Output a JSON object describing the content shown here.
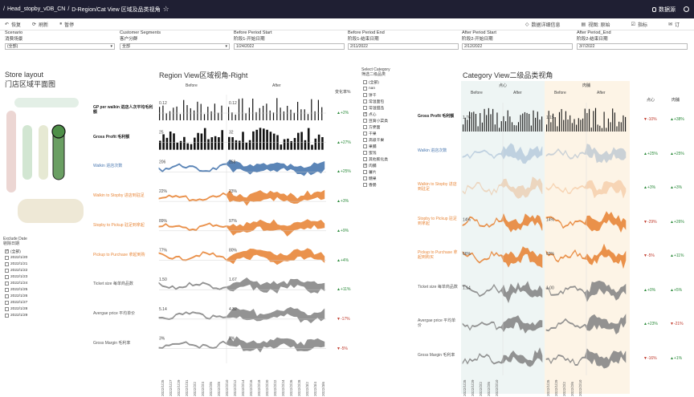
{
  "titlebar": {
    "sep": "/",
    "workbook": "Head_stopby_vDB_CN",
    "sep2": "/",
    "view": "D-Region/Cat View 区域及品类视角",
    "star": "☆",
    "datasource": "数据源"
  },
  "toolbar": {
    "undo": "恢复",
    "refresh": "刷新",
    "pause": "暂停",
    "data_details": "数据详细信息",
    "view_orig": "视图: 原始",
    "metrics": "指标",
    "subscribe": "订"
  },
  "filters": [
    {
      "en": "Scenario",
      "cn": "消费场景",
      "value": "(全部)"
    },
    {
      "en": "Customer Segments",
      "cn": "客户分群",
      "value": "全部"
    },
    {
      "en": "Before Period Start",
      "cn": "阶段1-开始日期",
      "value": "1/24/2022"
    },
    {
      "en": "Before Period End",
      "cn": "阶段1-结束日期",
      "value": "2/11/2022"
    },
    {
      "en": "After Period Start",
      "cn": "阶段2-开始日期",
      "value": "2/12/2022"
    },
    {
      "en": "After Period_End",
      "cn": "阶段2-结束日期",
      "value": "3/7/2022"
    }
  ],
  "store": {
    "title_en": "Store layout",
    "title_cn": "门店区域平面图"
  },
  "exclude": {
    "label_en": "Exclude Date",
    "label_cn": "剔除日期",
    "items": [
      "(全部)",
      "2022/1/20",
      "2022/1/21",
      "2022/1/22",
      "2022/1/23",
      "2022/1/24",
      "2022/1/25",
      "2022/1/26",
      "2022/1/27",
      "2022/1/28",
      "2022/1/29"
    ]
  },
  "region": {
    "title": "Region View区域视角-Right",
    "before": "Before",
    "after": "After",
    "change_header": "变化率%",
    "rows": [
      {
        "label": "GP per walkin 进店人次平均毛利额",
        "vb": "0.12",
        "va": "0.12",
        "chg": "▲+2%"
      },
      {
        "label": "Gross Profit 毛利额",
        "vb": "25",
        "va": "32",
        "chg": "▲+27%"
      },
      {
        "label": "Walkin 进店次数",
        "vb": "206",
        "va": "258",
        "chg": "▲+25%"
      },
      {
        "label": "Walkin to Stopby 进店到驻足",
        "vb": "22%",
        "va": "23%",
        "chg": "▲+3%"
      },
      {
        "label": "Stopby to Pickup 驻足到拿起",
        "vb": "89%",
        "va": "97%",
        "chg": "▲+9%"
      },
      {
        "label": "Pickup to Purchase 拿起到购",
        "vb": "77%",
        "va": "80%",
        "chg": "▲+4%"
      },
      {
        "label": "Ticket size 每单商品数",
        "vb": "1.50",
        "va": "1.67",
        "chg": "▲+11%"
      },
      {
        "label": "Avergae price 平均单价",
        "vb": "5.14",
        "va": "4.32",
        "chg": "▼-17%"
      },
      {
        "label": "Gross Margin 毛利率",
        "vb": "3%",
        "va": "3%",
        "chg": "▼-5%"
      }
    ],
    "dates": [
      "2022/1/25",
      "2022/1/27",
      "2022/1/29",
      "2022/1/31",
      "2022/2/2",
      "2022/2/4",
      "2022/2/6",
      "2022/2/8",
      "2022/2/10",
      "2022/2/12",
      "2022/2/14",
      "2022/2/16",
      "2022/2/18",
      "2022/2/20",
      "2022/2/22",
      "2022/2/24",
      "2022/2/26",
      "2022/2/28",
      "2022/3/2",
      "2022/3/4",
      "2022/3/6"
    ]
  },
  "category_filter": {
    "label_en": "Select Category",
    "label_cn": "筛选二级品类",
    "items": [
      {
        "name": "(全部)",
        "on": false
      },
      {
        "name": "nan",
        "on": false
      },
      {
        "name": "饼干",
        "on": false
      },
      {
        "name": "常温面包",
        "on": false
      },
      {
        "name": "常温甜品",
        "on": false
      },
      {
        "name": "点心",
        "on": true
      },
      {
        "name": "豆腐小菜类",
        "on": false
      },
      {
        "name": "方便面",
        "on": false
      },
      {
        "name": "干果",
        "on": false
      },
      {
        "name": "高级干果",
        "on": false
      },
      {
        "name": "果脯",
        "on": false
      },
      {
        "name": "蜜饯",
        "on": false
      },
      {
        "name": "其他膨化类",
        "on": false
      },
      {
        "name": "肉脯",
        "on": true
      },
      {
        "name": "薯片",
        "on": false
      },
      {
        "name": "糖果",
        "on": false
      },
      {
        "name": "香肠",
        "on": false
      }
    ]
  },
  "category": {
    "title": "Category View二级品类视角",
    "cat1": "点心",
    "cat2": "肉脯",
    "before": "Before",
    "after": "After",
    "rows": [
      {
        "label": "Gross Profit 毛利额",
        "v1": "1.76",
        "v2": "1.15",
        "c1": "▼-10%",
        "c2": "▲+38%"
      },
      {
        "label": "Walkin 进店次数",
        "v1": "",
        "v2": "",
        "c1": "▲+25%",
        "c2": "▲+25%"
      },
      {
        "label": "Walkin to Stopby 进店到驻足",
        "v1": "",
        "v2": "",
        "c1": "▲+3%",
        "c2": "▲+3%"
      },
      {
        "label": "Stopby to Pickup 驻足到拿起",
        "v1": "14%",
        "v2": "14%",
        "c1": "▼-29%",
        "c2": "▲+26%"
      },
      {
        "label": "Pickup to Purchase 拿起到购买",
        "v1": "66%",
        "v2": "69%",
        "c1": "▼-5%",
        "c2": "▲+11%"
      },
      {
        "label": "Ticket size 每单商品数",
        "v1": "1.14",
        "v2": "1.00",
        "c1": "▲+0%",
        "c2": "▲+5%"
      },
      {
        "label": "Avergae price 平均单价",
        "v1": "",
        "v2": "",
        "c1": "▲+23%",
        "c2": "▼-21%"
      },
      {
        "label": "Gross Margin 毛利率",
        "v1": "",
        "v2": "",
        "c1": "▼-16%",
        "c2": "▲+1%"
      }
    ],
    "dates": [
      "2022/1/25",
      "2022/1/29",
      "2022/2/2",
      "2022/2/6",
      "2022/2/10",
      "2022/1/25",
      "2022/1/29",
      "2022/2/2",
      "2022/2/6",
      "2022/2/10"
    ]
  },
  "colors": {
    "blue": "#4a78b0",
    "orange": "#e8873a",
    "grey": "#888888",
    "black": "#111111",
    "before_bg": "#eef5f4",
    "after_bg": "#fdf4e6"
  }
}
